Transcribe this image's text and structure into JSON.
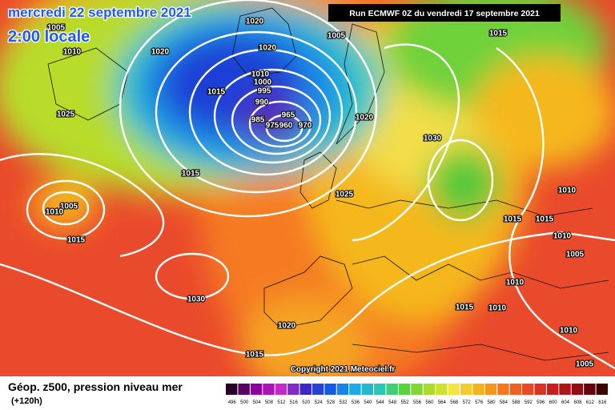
{
  "header": {
    "date": "mercredi 22 septembre 2021",
    "time": "2:00 locale",
    "run": "Run ECMWF 0Z du vendredi 17 septembre 2021"
  },
  "footer": {
    "title": "Géop. z500, pression niveau mer",
    "lead": "(+120h)",
    "copyright": "Copyright 2021 Meteociel.fr"
  },
  "legend": {
    "values": [
      496,
      500,
      504,
      508,
      512,
      516,
      520,
      524,
      528,
      532,
      536,
      540,
      544,
      548,
      552,
      556,
      560,
      564,
      568,
      572,
      576,
      580,
      584,
      588,
      592,
      596,
      600,
      604,
      608,
      612,
      616
    ]
  },
  "isobar_labels": [
    1020,
    1005,
    1010,
    1020,
    1020,
    1005,
    1015,
    1015,
    1010,
    1000,
    995,
    990,
    985,
    975,
    965,
    960,
    970,
    1025,
    1020,
    1030,
    1015,
    1025,
    1005,
    1010,
    1015,
    1030,
    1020,
    1015,
    1010,
    1015,
    1015,
    1010,
    1005,
    1010,
    1015,
    1010,
    1010,
    1005
  ]
}
